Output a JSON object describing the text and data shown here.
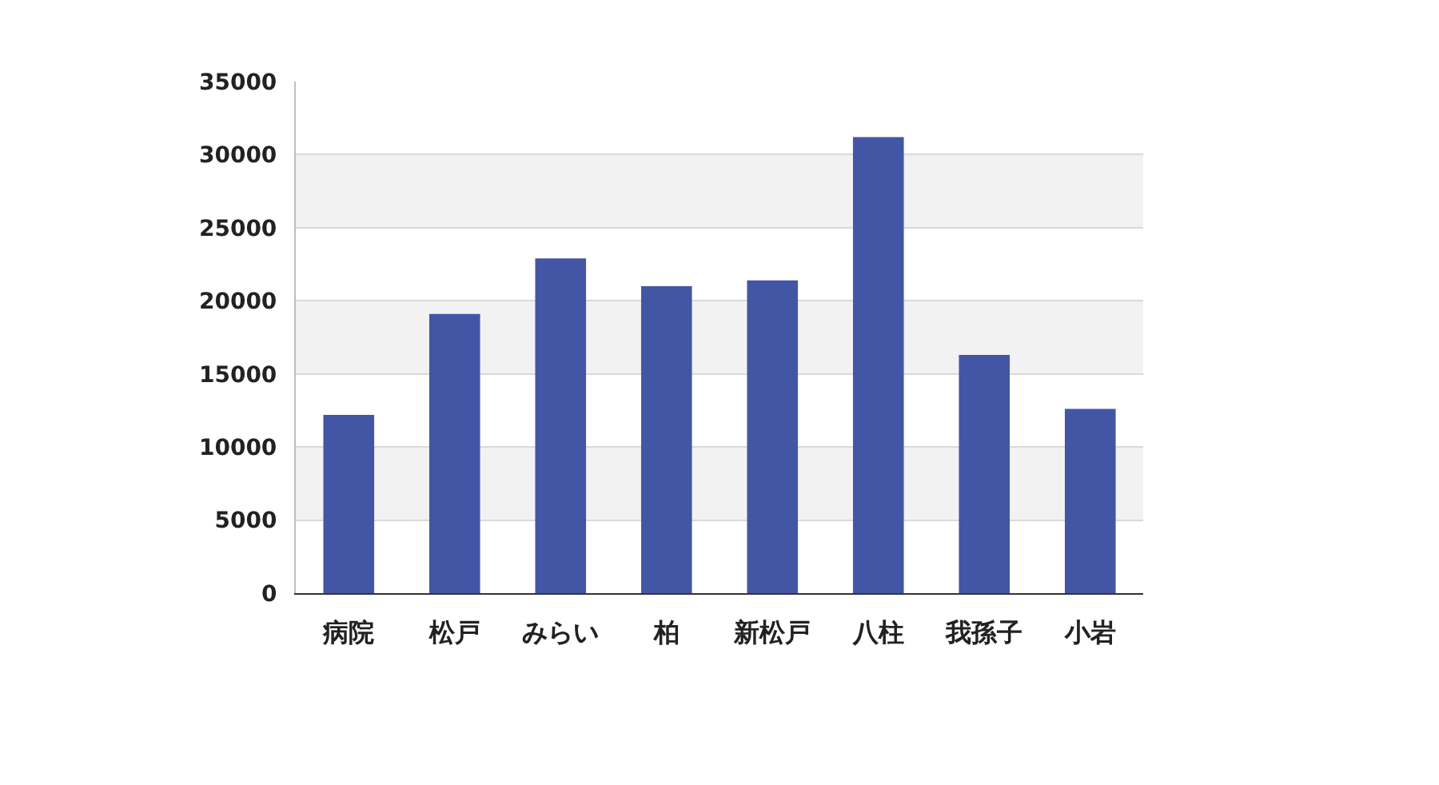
{
  "chart_data": {
    "type": "bar",
    "categories": [
      "病院",
      "松戸",
      "みらい",
      "柏",
      "新松戸",
      "八柱",
      "我孫子",
      "小岩"
    ],
    "values": [
      12200,
      19100,
      22900,
      21000,
      21400,
      31200,
      16300,
      12600
    ],
    "color": "#4356a6",
    "ylim": [
      0,
      35000
    ],
    "yticks": [
      0,
      5000,
      10000,
      15000,
      20000,
      25000,
      30000,
      35000
    ],
    "grid": "y",
    "bands": [
      {
        "axis": "y",
        "from": 5000,
        "to": 10000,
        "color": "#f2f2f2"
      },
      {
        "axis": "y",
        "from": 15000,
        "to": 20000,
        "color": "#f2f2f2"
      },
      {
        "axis": "y",
        "from": 25000,
        "to": 30000,
        "color": "#f2f2f2"
      }
    ]
  }
}
